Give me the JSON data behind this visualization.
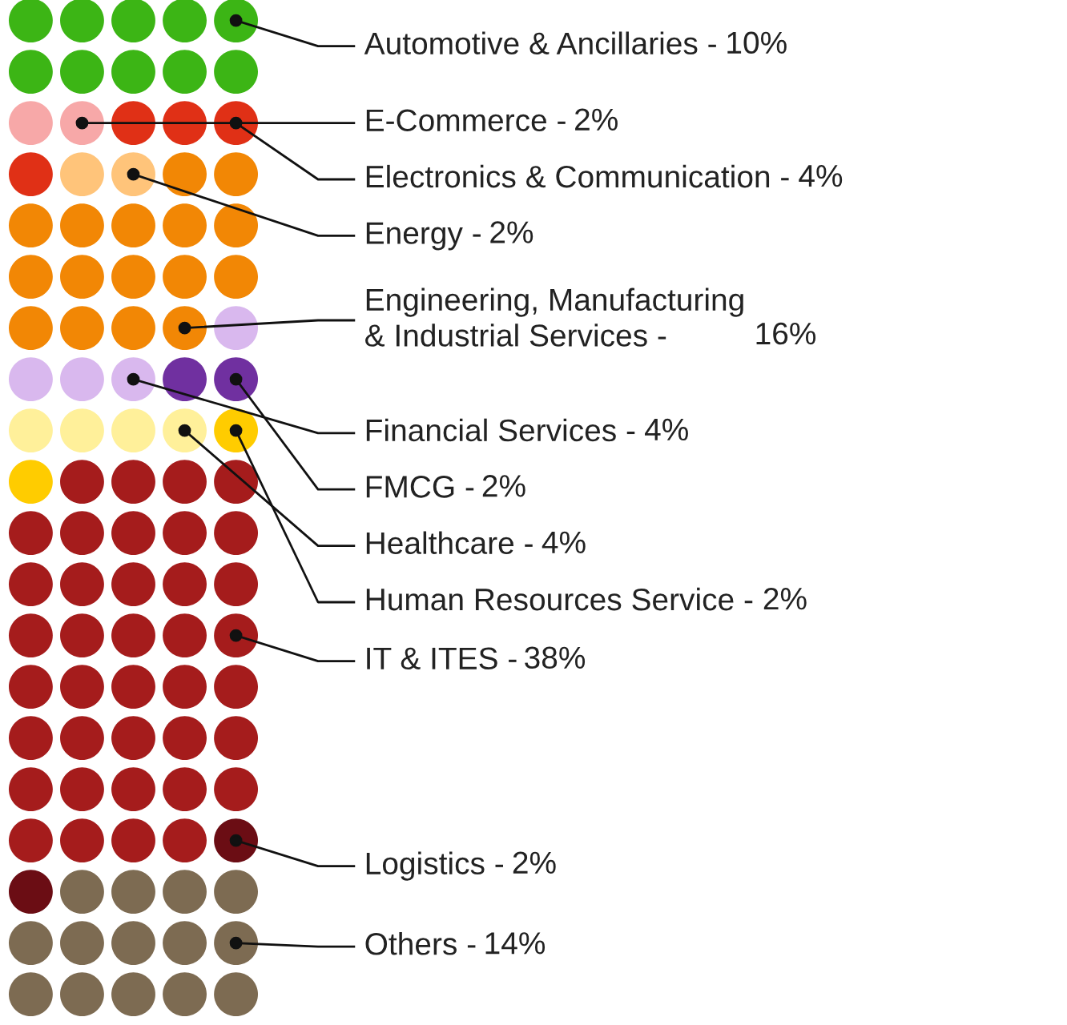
{
  "chart_data": {
    "type": "other",
    "categories": [
      "Automotive & Ancillaries -",
      "E-Commerce -",
      "Electronics & Communication -",
      "Energy -",
      "Engineering, Manufacturing\n& Industrial Services -",
      "Financial Services -",
      "FMCG -",
      "Healthcare -",
      "Human Resources Service -",
      "IT & ITES -",
      "Logistics -",
      "Others -"
    ],
    "values": [
      10,
      2,
      4,
      2,
      16,
      4,
      2,
      4,
      2,
      38,
      2,
      14
    ],
    "value_labels": [
      "10%",
      "2%",
      "4%",
      "2%",
      "16%",
      "4%",
      "2%",
      "4%",
      "2%",
      "38%",
      "2%",
      "14%"
    ],
    "colors": [
      "#3cb515",
      "#f7a8a8",
      "#e03016",
      "#ffc47a",
      "#f28705",
      "#d9b8ee",
      "#7030a0",
      "#fff09a",
      "#ffcc00",
      "#a51c1c",
      "#6b0d14",
      "#7d6b52"
    ]
  }
}
